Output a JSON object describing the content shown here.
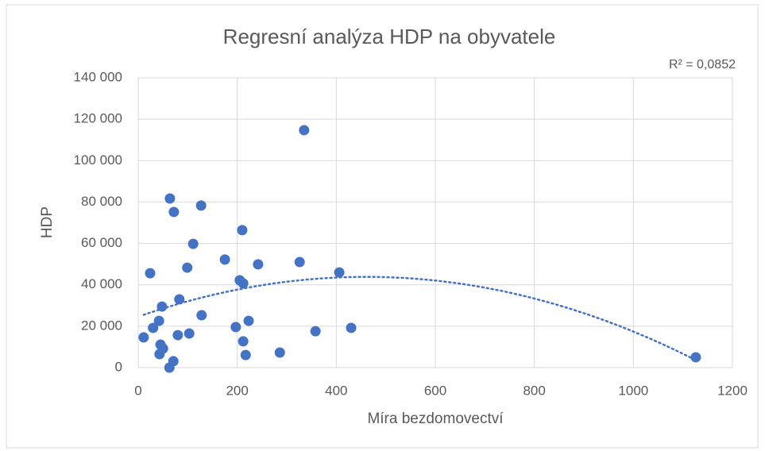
{
  "chart_data": {
    "type": "scatter",
    "title": "Regresní analýza HDP na obyvatele",
    "xlabel": "Míra bezdomovectví",
    "ylabel": "HDP",
    "annotation": "R² = 0,0852",
    "trendline": "polynomial",
    "color": "#4472c4",
    "grid": true,
    "x": [
      11,
      24,
      30,
      42,
      43,
      45,
      50,
      48,
      63,
      64,
      71,
      72,
      80,
      83,
      99,
      103,
      111,
      127,
      128,
      175,
      197,
      205,
      210,
      212,
      212,
      217,
      223,
      242,
      286,
      326,
      335,
      358,
      406,
      430,
      1126
    ],
    "values": [
      14600,
      45600,
      19200,
      22600,
      6500,
      11100,
      9200,
      29500,
      0,
      81700,
      3100,
      75200,
      15700,
      33000,
      48300,
      16500,
      59800,
      78300,
      25300,
      52200,
      19600,
      42200,
      66400,
      40700,
      12700,
      6100,
      22600,
      49900,
      7300,
      51000,
      114700,
      17600,
      46000,
      19200,
      5000
    ],
    "xlim": [
      0,
      1200
    ],
    "xticks": [
      0,
      200,
      400,
      600,
      800,
      1000,
      1200
    ],
    "ylim": [
      0,
      140000
    ],
    "yticks": [
      0,
      {
        "value": 20000,
        "label": "20 000"
      },
      {
        "value": 40000,
        "label": "40 000"
      },
      {
        "value": 60000,
        "label": "60 000"
      },
      {
        "value": 80000,
        "label": "80 000"
      },
      {
        "value": 100000,
        "label": "100 000"
      },
      {
        "value": 120000,
        "label": "120 000"
      },
      {
        "value": 140000,
        "label": "140 000"
      }
    ]
  }
}
